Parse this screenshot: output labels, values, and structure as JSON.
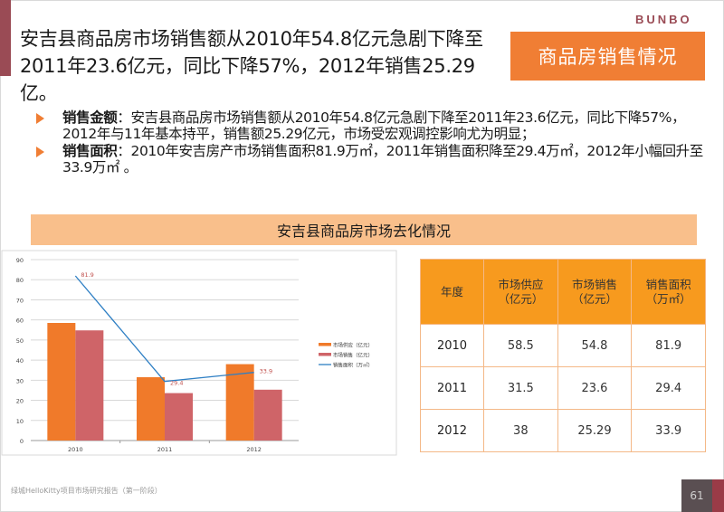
{
  "header": {
    "headline_line1": "安吉县商品房市场销售额从2010年54.8亿元急剧下降至",
    "headline_line2": "2011年23.6亿元，同比下降57%，2012年销售25.29亿。",
    "brand": "BUNBO",
    "section_title": "商品房销售情况"
  },
  "bullets": [
    {
      "label": "销售金额",
      "text": "：安吉县商品房市场销售额从2010年54.8亿元急剧下降至2011年23.6亿元，同比下降57%，2012年与11年基本持平，销售额25.29亿元，市场受宏观调控影响尤为明显；"
    },
    {
      "label": "销售面积",
      "text": "：2010年安吉房产市场销售面积81.9万㎡，2011年销售面积降至29.4万㎡，2012年小幅回升至33.9万㎡ 。"
    }
  ],
  "chart_section_title": "安吉县商品房市场去化情况",
  "chart_data": {
    "type": "bar",
    "title": "安吉县商品房市场去化情况",
    "categories": [
      "2010",
      "2011",
      "2012"
    ],
    "series": [
      {
        "name": "市场供应（亿元）",
        "type": "bar",
        "color": "#f07a2a",
        "values": [
          58.5,
          31.5,
          38
        ]
      },
      {
        "name": "市场销售（亿元）",
        "type": "bar",
        "color": "#cf6468",
        "values": [
          54.8,
          23.6,
          25.29
        ]
      },
      {
        "name": "销售面积（万㎡）",
        "type": "line",
        "color": "#2e7fc4",
        "values": [
          81.9,
          29.4,
          33.9
        ],
        "data_labels": [
          "81.9",
          "29.4",
          "33.9"
        ]
      }
    ],
    "xlabel": "",
    "ylabel": "",
    "ylim": [
      0,
      90
    ],
    "yticks": [
      0,
      10,
      20,
      30,
      40,
      50,
      60,
      70,
      80,
      90
    ],
    "grid": true,
    "legend_position": "right"
  },
  "table": {
    "headers": [
      {
        "line1": "年度",
        "line2": ""
      },
      {
        "line1": "市场供应",
        "line2": "（亿元）"
      },
      {
        "line1": "市场销售",
        "line2": "（亿元）"
      },
      {
        "line1": "销售面积",
        "line2": "（万㎡）"
      }
    ],
    "rows": [
      [
        "2010",
        "58.5",
        "54.8",
        "81.9"
      ],
      [
        "2011",
        "31.5",
        "23.6",
        "29.4"
      ],
      [
        "2012",
        "38",
        "25.29",
        "33.9"
      ]
    ]
  },
  "footer": {
    "text": "绿城HelloKitty项目市场研究报告（第一阶段）",
    "page_number": "61"
  },
  "colors": {
    "accent_orange": "#f07e34",
    "table_header": "#f79a1e",
    "section_bar": "#f9bf8b",
    "brand_red": "#9a4b55"
  }
}
